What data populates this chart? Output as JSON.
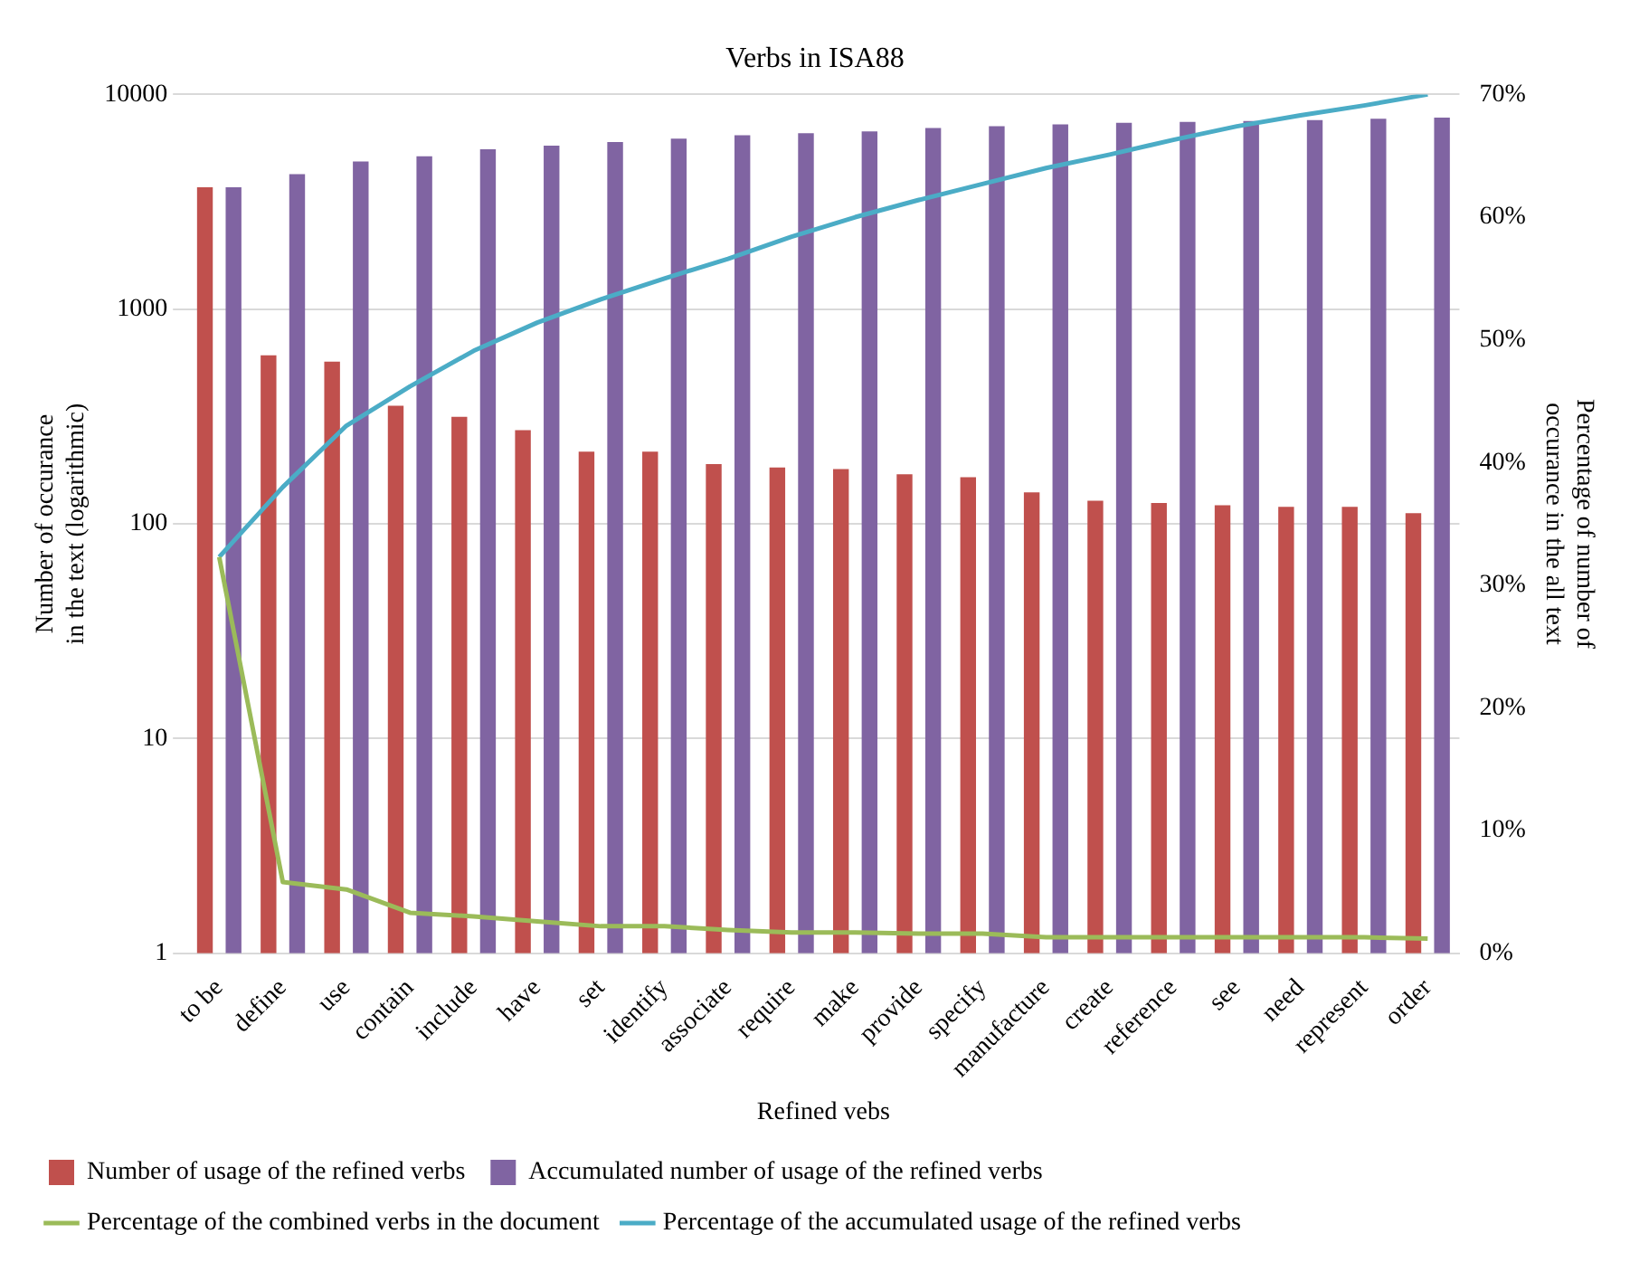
{
  "chart_data": {
    "type": "bar",
    "title": "Verbs in ISA88",
    "xlabel": "Refined vebs",
    "ylabel": "Number of occurance\nin the text (logarithmic)",
    "y2label": "Percentage of number of\noccurance in the all text",
    "categories": [
      "to be",
      "define",
      "use",
      "contain",
      "include",
      "have",
      "set",
      "identify",
      "associate",
      "require",
      "make",
      "provide",
      "specify",
      "manufacture",
      "create",
      "reference",
      "see",
      "need",
      "represent",
      "order"
    ],
    "series": [
      {
        "name": "Number of usage of the refined verbs",
        "color": "#c0504d",
        "values": [
          3700,
          610,
          570,
          355,
          315,
          273,
          217,
          217,
          190,
          183,
          180,
          170,
          165,
          140,
          128,
          125,
          122,
          120,
          120,
          112
        ]
      },
      {
        "name": "Accumulated number of usage of the refined verbs",
        "color": "#8064a2",
        "values": [
          3700,
          4250,
          4870,
          5150,
          5560,
          5770,
          6000,
          6230,
          6460,
          6600,
          6720,
          6980,
          7110,
          7250,
          7380,
          7450,
          7520,
          7600,
          7700,
          7800
        ]
      },
      {
        "name": "Percentage of the combined verbs in the document",
        "type": "line",
        "axis": "y2",
        "color": "#9bbb59",
        "values": [
          32.3,
          5.8,
          5.2,
          3.3,
          3.0,
          2.6,
          2.2,
          2.2,
          1.9,
          1.7,
          1.7,
          1.6,
          1.6,
          1.3,
          1.3,
          1.3,
          1.3,
          1.3,
          1.3,
          1.2
        ]
      },
      {
        "name": "Percentage of the accumulated usage of the refined verbs",
        "type": "line",
        "axis": "y2",
        "color": "#4bacc6",
        "values": [
          32.3,
          38,
          43,
          46.2,
          49.1,
          51.4,
          53.3,
          55,
          56.6,
          58.4,
          60,
          61.4,
          62.7,
          64,
          65.1,
          66.3,
          67.4,
          68.3,
          69.1,
          70
        ]
      }
    ],
    "log": "y",
    "ylim": [
      1,
      10000
    ],
    "yticks": [
      1,
      10,
      100,
      1000,
      10000
    ],
    "y2lim": [
      0,
      70
    ],
    "y2ticks": [
      {
        "value": 0,
        "label": "0%"
      },
      {
        "value": 10,
        "label": "10%"
      },
      {
        "value": 20,
        "label": "20%"
      },
      {
        "value": 30,
        "label": "30%"
      },
      {
        "value": 40,
        "label": "40%"
      },
      {
        "value": 50,
        "label": "50%"
      },
      {
        "value": 60,
        "label": "60%"
      },
      {
        "value": 70,
        "label": "70%"
      }
    ],
    "grid": "y",
    "legend": "bottom",
    "marker": "none",
    "line_style": "solid"
  }
}
